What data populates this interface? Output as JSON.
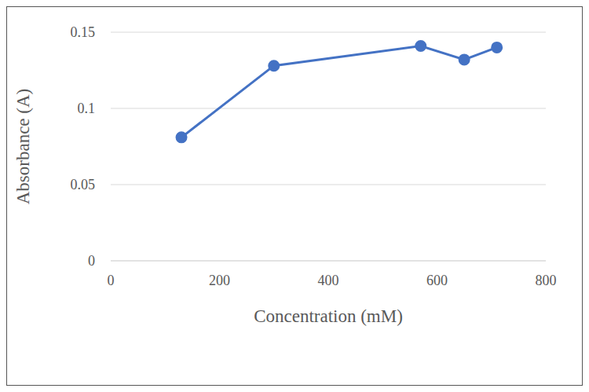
{
  "chart_data": {
    "type": "line",
    "x_label": "Concentration (mM)",
    "y_label": "Absorbance (A)",
    "x": [
      130,
      300,
      570,
      650,
      710
    ],
    "values": [
      0.081,
      0.128,
      0.141,
      0.132,
      0.14
    ],
    "color": "#4472c4",
    "marker": "circle",
    "xlim": [
      0,
      800
    ],
    "xticks": [
      0,
      200,
      400,
      600,
      800
    ],
    "ylim": [
      0,
      0.15
    ],
    "yticks": [
      0,
      0.05,
      0.1,
      0.15
    ],
    "grid": true
  }
}
